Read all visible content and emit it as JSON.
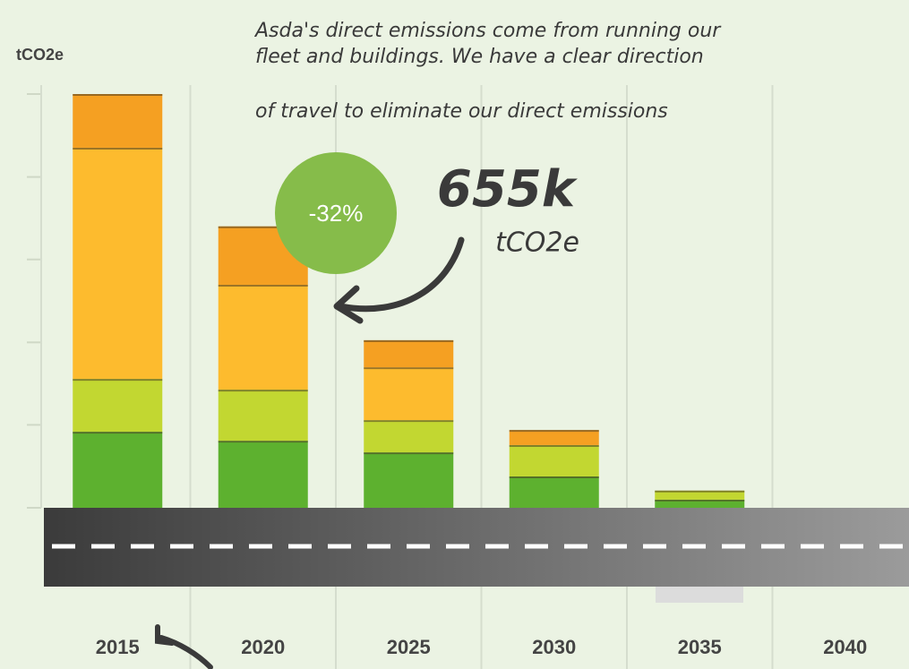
{
  "chart_data": {
    "type": "bar",
    "stacked": true,
    "y_label": "tCO2e",
    "annotation_lines": [
      "Asda's direct emissions come from running our",
      "fleet and buildings. We have a clear direction",
      "of travel to eliminate our direct emissions"
    ],
    "change_badge": "-32%",
    "callout_value": "655k",
    "callout_unit": "tCO2e",
    "categories": [
      "2015",
      "2020",
      "2025",
      "2030",
      "2035",
      "2040"
    ],
    "series": [
      {
        "color": "#5db12f",
        "values": [
          177,
          156,
          129,
          73,
          19,
          0
        ]
      },
      {
        "color": "#c2d731",
        "values": [
          123,
          119,
          75,
          73,
          21,
          0
        ]
      },
      {
        "color": "#fdbb2e",
        "values": [
          538,
          244,
          123,
          0,
          0,
          0
        ]
      },
      {
        "color": "#f5a022",
        "values": [
          125,
          136,
          63,
          35,
          0,
          0
        ]
      }
    ],
    "ylim": [
      0,
      963
    ],
    "yticks": [
      0,
      193,
      385,
      578,
      770,
      963
    ],
    "badge_color": "#86bc4a"
  }
}
